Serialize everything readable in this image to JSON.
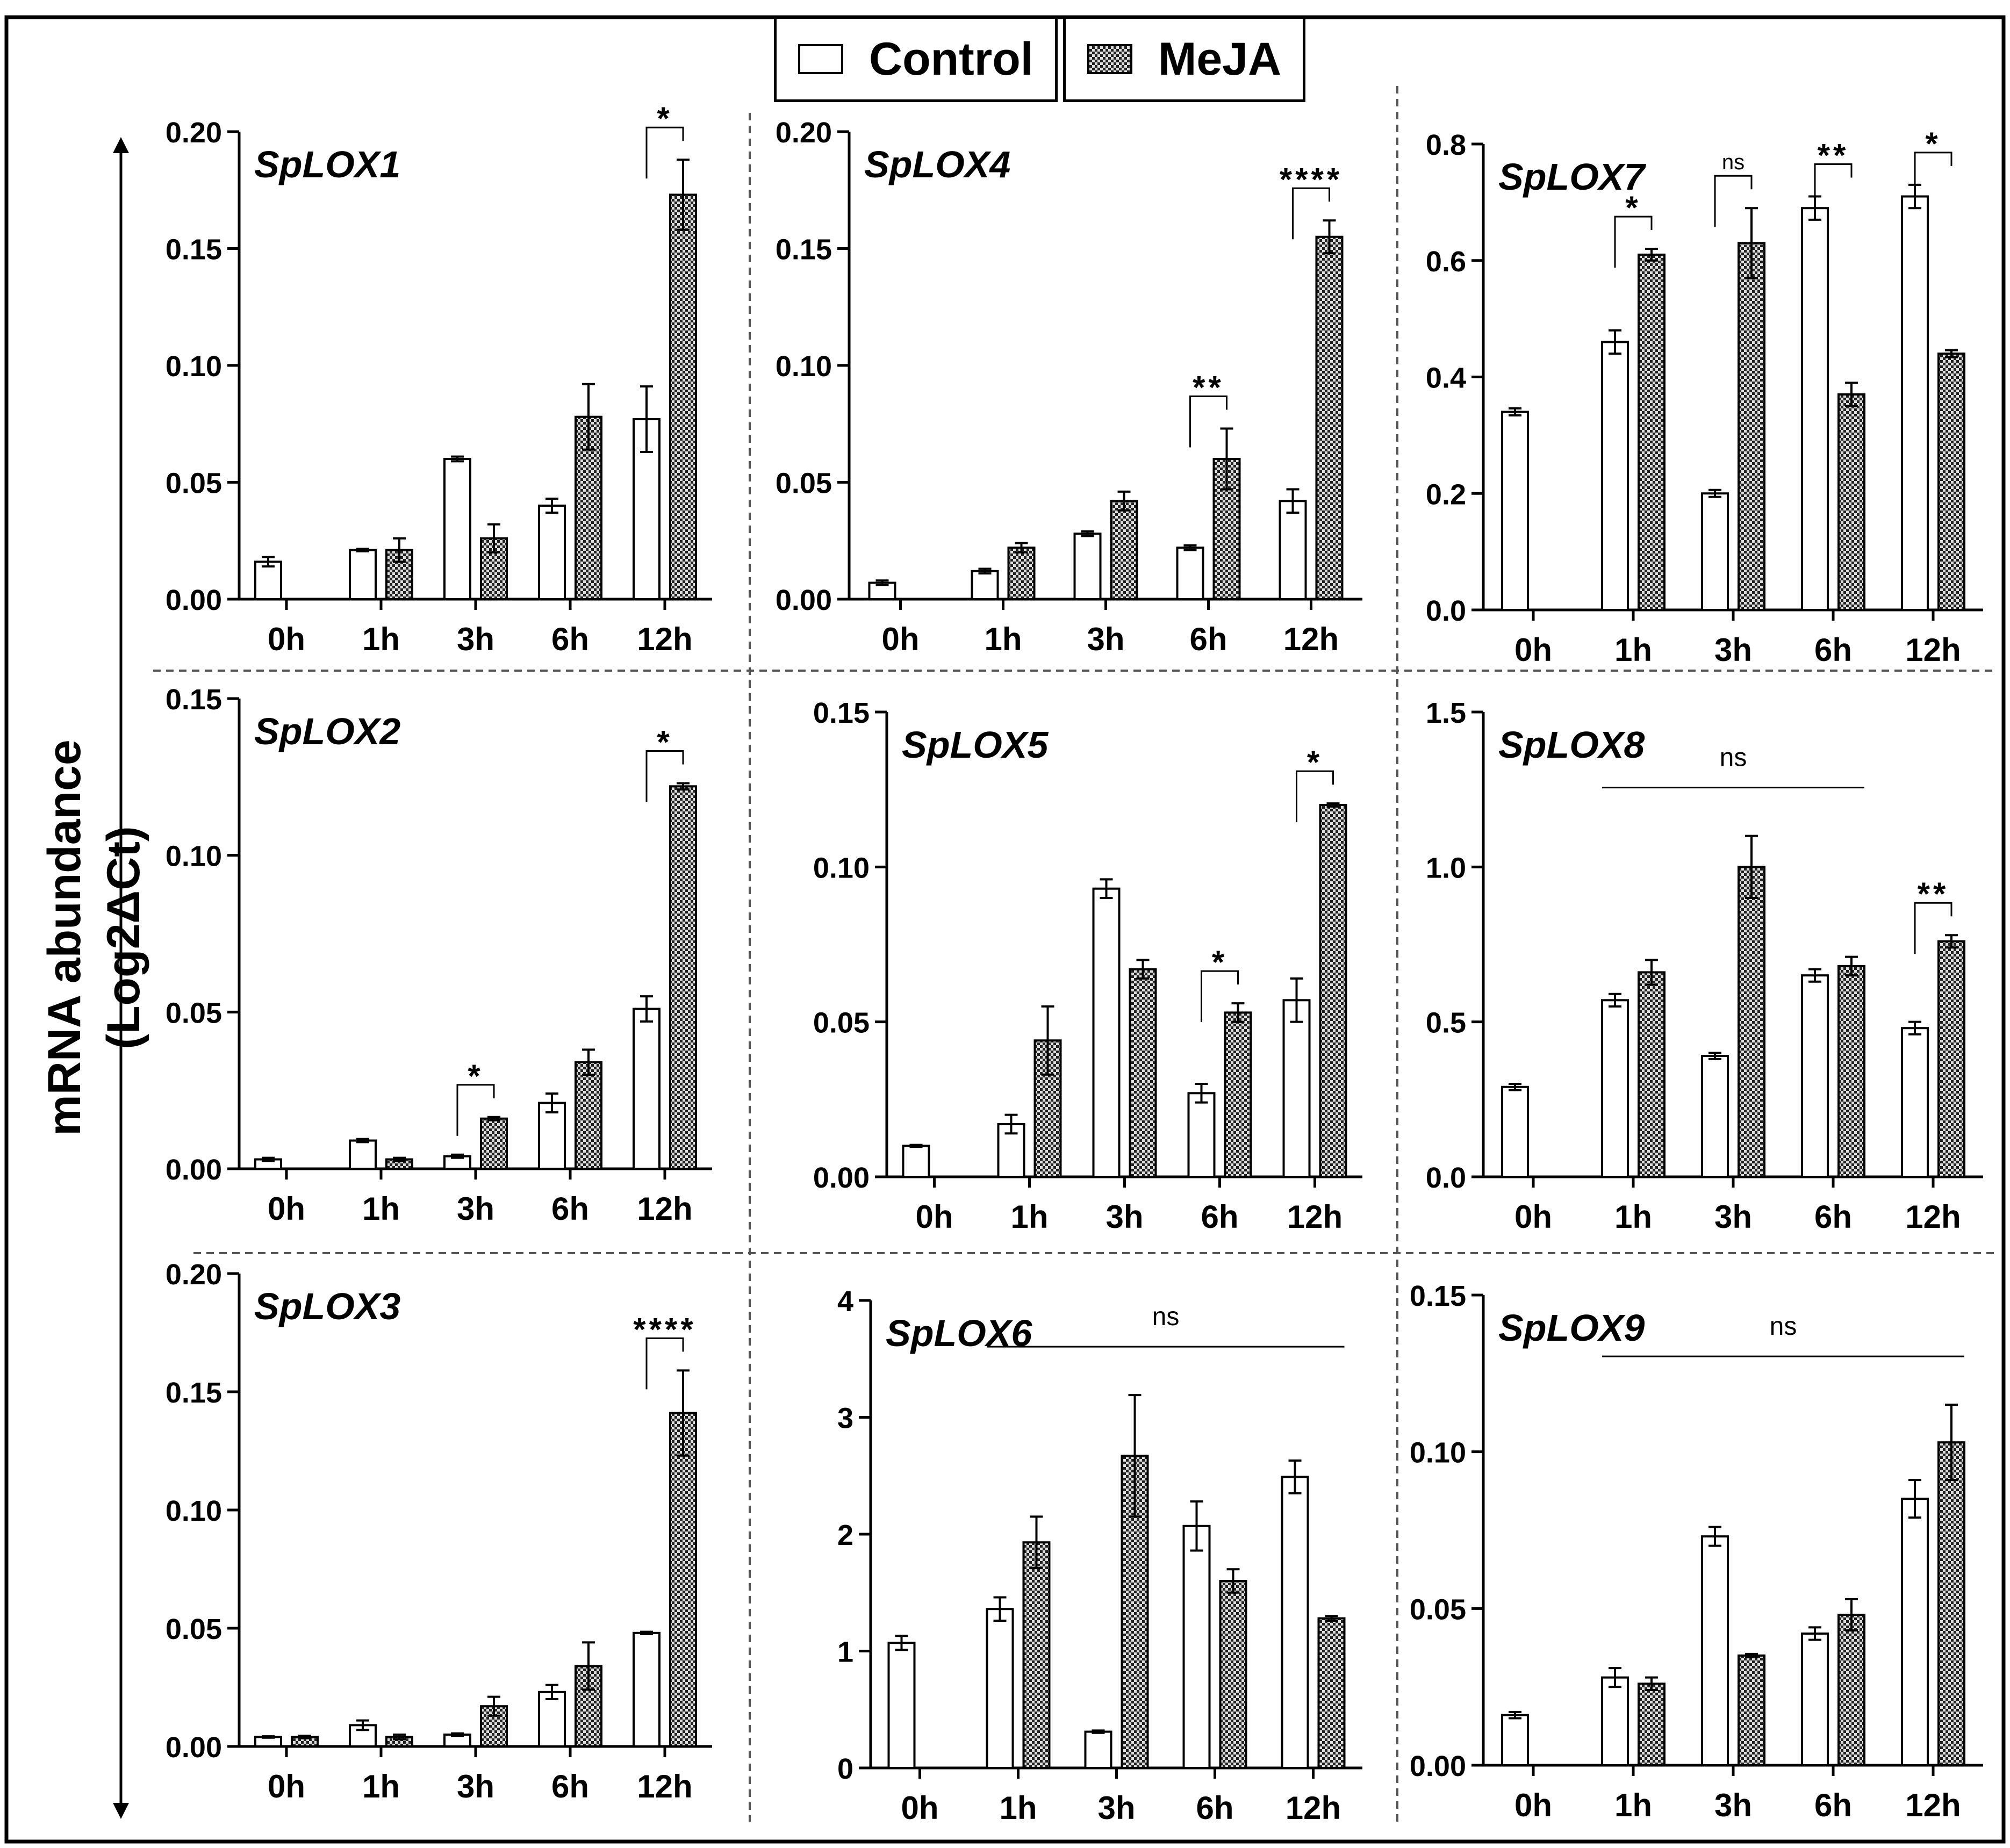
{
  "figure": {
    "y_axis_title": "mRNA abundance (Log2ΔCt)",
    "legend": [
      {
        "label": "Control",
        "fill": "white"
      },
      {
        "label": "MeJA",
        "fill": "checker"
      }
    ]
  },
  "colors": {
    "ink": "#000000",
    "background": "#ffffff",
    "control_fill": "#ffffff",
    "meja_check_dark": "#222222",
    "meja_check_light": "#dddddd",
    "divider": "#555555"
  },
  "chart_data": [
    {
      "type": "bar",
      "title": "SpLOX1",
      "categories": [
        "0h",
        "1h",
        "3h",
        "6h",
        "12h"
      ],
      "ylim": [
        0,
        0.2
      ],
      "yticks": [
        0,
        0.05,
        0.1,
        0.15,
        0.2
      ],
      "ytick_labels": [
        "0.00",
        "0.05",
        "0.10",
        "0.15",
        "0.20"
      ],
      "series": [
        {
          "name": "Control",
          "values": [
            0.016,
            0.021,
            0.06,
            0.04,
            0.077
          ],
          "errors": [
            0.002,
            0.0005,
            0.001,
            0.003,
            0.014
          ]
        },
        {
          "name": "MeJA",
          "values": [
            null,
            0.021,
            0.026,
            0.078,
            0.173
          ],
          "errors": [
            null,
            0.005,
            0.006,
            0.014,
            0.015
          ]
        }
      ],
      "annotations": [
        {
          "category": "12h",
          "type": "bracket",
          "label": "*"
        }
      ]
    },
    {
      "type": "bar",
      "title": "SpLOX4",
      "categories": [
        "0h",
        "1h",
        "3h",
        "6h",
        "12h"
      ],
      "ylim": [
        0,
        0.2
      ],
      "yticks": [
        0,
        0.05,
        0.1,
        0.15,
        0.2
      ],
      "ytick_labels": [
        "0.00",
        "0.05",
        "0.10",
        "0.15",
        "0.20"
      ],
      "series": [
        {
          "name": "Control",
          "values": [
            0.007,
            0.012,
            0.028,
            0.022,
            0.042
          ],
          "errors": [
            0.001,
            0.001,
            0.001,
            0.001,
            0.005
          ]
        },
        {
          "name": "MeJA",
          "values": [
            null,
            0.022,
            0.042,
            0.06,
            0.155
          ],
          "errors": [
            null,
            0.002,
            0.004,
            0.013,
            0.007
          ]
        }
      ],
      "annotations": [
        {
          "category": "6h",
          "type": "bracket",
          "label": "**"
        },
        {
          "category": "12h",
          "type": "bracket",
          "label": "****"
        }
      ]
    },
    {
      "type": "bar",
      "title": "SpLOX7",
      "categories": [
        "0h",
        "1h",
        "3h",
        "6h",
        "12h"
      ],
      "ylim": [
        0,
        0.8
      ],
      "yticks": [
        0,
        0.2,
        0.4,
        0.6,
        0.8
      ],
      "ytick_labels": [
        "0.0",
        "0.2",
        "0.4",
        "0.6",
        "0.8"
      ],
      "series": [
        {
          "name": "Control",
          "values": [
            0.34,
            0.46,
            0.2,
            0.69,
            0.71
          ],
          "errors": [
            0.006,
            0.02,
            0.006,
            0.02,
            0.02
          ]
        },
        {
          "name": "MeJA",
          "values": [
            null,
            0.61,
            0.63,
            0.37,
            0.44
          ],
          "errors": [
            null,
            0.01,
            0.06,
            0.02,
            0.006
          ]
        }
      ],
      "annotations": [
        {
          "category": "1h",
          "type": "bracket",
          "label": "*"
        },
        {
          "category": "3h",
          "type": "bracket",
          "label": "ns"
        },
        {
          "category": "6h",
          "type": "bracket",
          "label": "**"
        },
        {
          "category": "12h",
          "type": "bracket",
          "label": "*"
        }
      ]
    },
    {
      "type": "bar",
      "title": "SpLOX2",
      "categories": [
        "0h",
        "1h",
        "3h",
        "6h",
        "12h"
      ],
      "ylim": [
        0,
        0.15
      ],
      "yticks": [
        0,
        0.05,
        0.1,
        0.15
      ],
      "ytick_labels": [
        "0.00",
        "0.05",
        "0.10",
        "0.15"
      ],
      "series": [
        {
          "name": "Control",
          "values": [
            0.003,
            0.009,
            0.004,
            0.021,
            0.051
          ],
          "errors": [
            0.0005,
            0.0005,
            0.0005,
            0.003,
            0.004
          ]
        },
        {
          "name": "MeJA",
          "values": [
            null,
            0.003,
            0.016,
            0.034,
            0.122
          ],
          "errors": [
            null,
            0.0005,
            0.0005,
            0.004,
            0.001
          ]
        }
      ],
      "annotations": [
        {
          "category": "3h",
          "type": "bracket",
          "label": "*"
        },
        {
          "category": "12h",
          "type": "bracket",
          "label": "*"
        }
      ]
    },
    {
      "type": "bar",
      "title": "SpLOX5",
      "categories": [
        "0h",
        "1h",
        "3h",
        "6h",
        "12h"
      ],
      "ylim": [
        0,
        0.15
      ],
      "yticks": [
        0,
        0.05,
        0.1,
        0.15
      ],
      "ytick_labels": [
        "0.00",
        "0.05",
        "0.10",
        "0.15"
      ],
      "series": [
        {
          "name": "Control",
          "values": [
            0.01,
            0.017,
            0.093,
            0.027,
            0.057
          ],
          "errors": [
            0.0003,
            0.003,
            0.003,
            0.003,
            0.007
          ]
        },
        {
          "name": "MeJA",
          "values": [
            null,
            0.044,
            0.067,
            0.053,
            0.12
          ],
          "errors": [
            null,
            0.011,
            0.003,
            0.003,
            0.0005
          ]
        }
      ],
      "annotations": [
        {
          "category": "6h",
          "type": "bracket",
          "label": "*"
        },
        {
          "category": "12h",
          "type": "bracket",
          "label": "*"
        }
      ]
    },
    {
      "type": "bar",
      "title": "SpLOX8",
      "categories": [
        "0h",
        "1h",
        "3h",
        "6h",
        "12h"
      ],
      "ylim": [
        0,
        1.5
      ],
      "yticks": [
        0,
        0.5,
        1.0,
        1.5
      ],
      "ytick_labels": [
        "0.0",
        "0.5",
        "1.0",
        "1.5"
      ],
      "series": [
        {
          "name": "Control",
          "values": [
            0.29,
            0.57,
            0.39,
            0.65,
            0.48
          ],
          "errors": [
            0.01,
            0.02,
            0.01,
            0.02,
            0.02
          ]
        },
        {
          "name": "MeJA",
          "values": [
            null,
            0.66,
            1.0,
            0.68,
            0.76
          ],
          "errors": [
            null,
            0.04,
            0.1,
            0.03,
            0.02
          ]
        }
      ],
      "annotations": [
        {
          "categories": [
            "1h",
            "6h"
          ],
          "type": "line",
          "label": "ns"
        },
        {
          "category": "12h",
          "type": "bracket",
          "label": "**"
        }
      ]
    },
    {
      "type": "bar",
      "title": "SpLOX3",
      "categories": [
        "0h",
        "1h",
        "3h",
        "6h",
        "12h"
      ],
      "ylim": [
        0,
        0.2
      ],
      "yticks": [
        0,
        0.05,
        0.1,
        0.15,
        0.2
      ],
      "ytick_labels": [
        "0.00",
        "0.05",
        "0.10",
        "0.15",
        "0.20"
      ],
      "series": [
        {
          "name": "Control",
          "values": [
            0.004,
            0.009,
            0.005,
            0.023,
            0.048
          ],
          "errors": [
            0.0003,
            0.002,
            0.0005,
            0.003,
            0.0005
          ]
        },
        {
          "name": "MeJA",
          "values": [
            0.004,
            0.004,
            0.017,
            0.034,
            0.141
          ],
          "errors": [
            0.0005,
            0.001,
            0.004,
            0.01,
            0.018
          ]
        }
      ],
      "annotations": [
        {
          "category": "12h",
          "type": "bracket",
          "label": "****"
        }
      ]
    },
    {
      "type": "bar",
      "title": "SpLOX6",
      "categories": [
        "0h",
        "1h",
        "3h",
        "6h",
        "12h"
      ],
      "ylim": [
        0,
        4
      ],
      "yticks": [
        0,
        1,
        2,
        3,
        4
      ],
      "ytick_labels": [
        "0",
        "1",
        "2",
        "3",
        "4"
      ],
      "series": [
        {
          "name": "Control",
          "values": [
            1.07,
            1.36,
            0.31,
            2.07,
            2.49
          ],
          "errors": [
            0.06,
            0.1,
            0.01,
            0.21,
            0.14
          ]
        },
        {
          "name": "MeJA",
          "values": [
            null,
            1.93,
            2.67,
            1.6,
            1.28
          ],
          "errors": [
            null,
            0.22,
            0.52,
            0.1,
            0.02
          ]
        }
      ],
      "annotations": [
        {
          "categories": [
            "1h",
            "12h"
          ],
          "type": "line",
          "label": "ns"
        }
      ]
    },
    {
      "type": "bar",
      "title": "SpLOX9",
      "categories": [
        "0h",
        "1h",
        "3h",
        "6h",
        "12h"
      ],
      "ylim": [
        0,
        0.15
      ],
      "yticks": [
        0,
        0.05,
        0.1,
        0.15
      ],
      "ytick_labels": [
        "0.00",
        "0.05",
        "0.10",
        "0.15"
      ],
      "series": [
        {
          "name": "Control",
          "values": [
            0.016,
            0.028,
            0.073,
            0.042,
            0.085
          ],
          "errors": [
            0.001,
            0.003,
            0.003,
            0.002,
            0.006
          ]
        },
        {
          "name": "MeJA",
          "values": [
            null,
            0.026,
            0.035,
            0.048,
            0.103
          ],
          "errors": [
            null,
            0.002,
            0.0005,
            0.005,
            0.012
          ]
        }
      ],
      "annotations": [
        {
          "categories": [
            "1h",
            "12h"
          ],
          "type": "line",
          "label": "ns"
        }
      ]
    }
  ]
}
